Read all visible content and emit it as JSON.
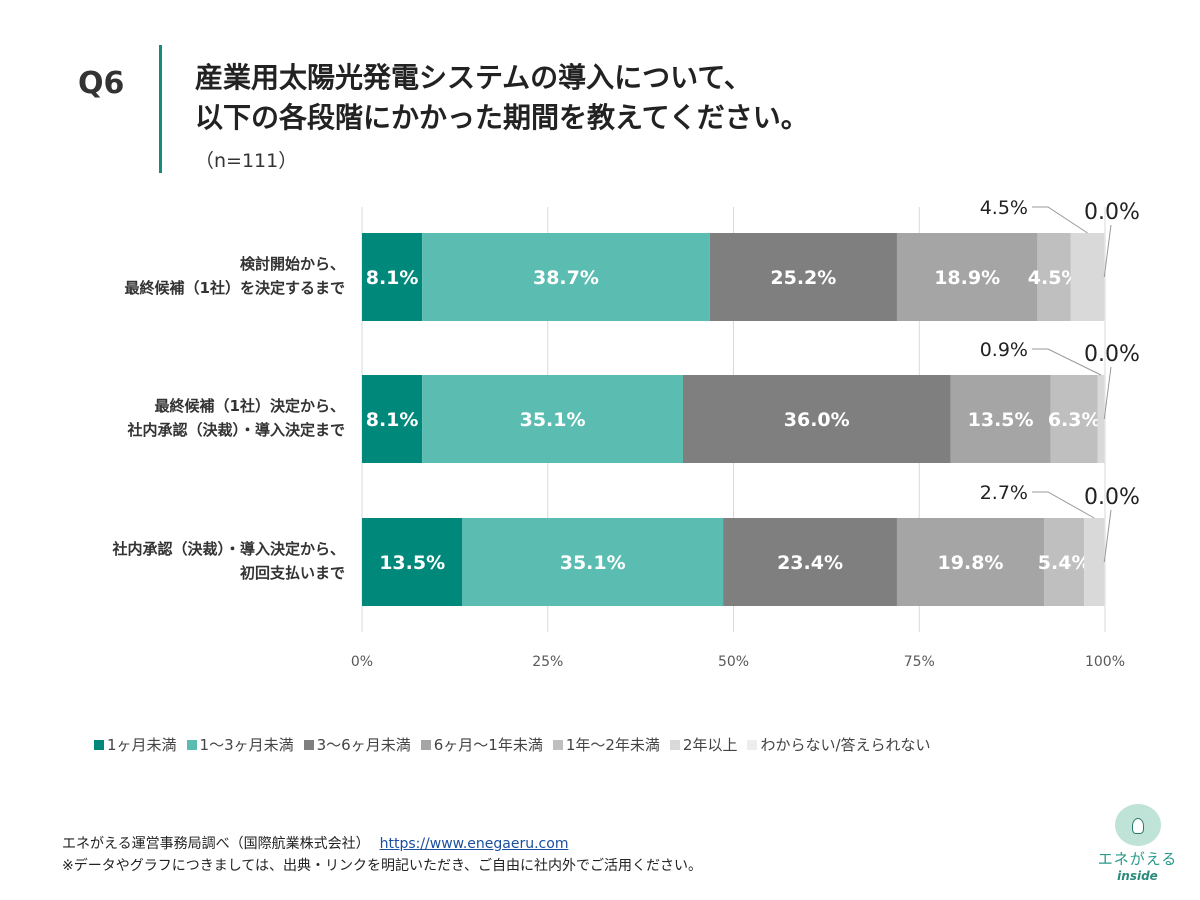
{
  "header": {
    "q": "Q6",
    "title_line1": "産業用太陽光発電システムの導入について、",
    "title_line2": "以下の各段階にかかった期間を教えてください。",
    "n": "（n=111）"
  },
  "chart_data": {
    "type": "bar",
    "orientation": "horizontal",
    "stacked": "100%",
    "categories": [
      [
        "検討開始から、",
        "最終候補（1社）を決定するまで"
      ],
      [
        "最終候補（1社）決定から、",
        "社内承認（決裁）・導入決定まで"
      ],
      [
        "社内承認（決裁）・導入決定から、",
        "初回支払いまで"
      ]
    ],
    "series": [
      {
        "name": "1ヶ月未満",
        "color": "#00897b",
        "values": [
          8.1,
          8.1,
          13.5
        ]
      },
      {
        "name": "1〜3ヶ月未満",
        "color": "#5bbcb1",
        "values": [
          38.7,
          35.1,
          35.1
        ]
      },
      {
        "name": "3〜6ヶ月未満",
        "color": "#7f7f7f",
        "values": [
          25.2,
          36.0,
          23.4
        ]
      },
      {
        "name": "6ヶ月〜1年未満",
        "color": "#a5a5a5",
        "values": [
          18.9,
          13.5,
          19.8
        ]
      },
      {
        "name": "1年〜2年未満",
        "color": "#bfbfbf",
        "values": [
          4.5,
          6.3,
          5.4
        ]
      },
      {
        "name": "2年以上",
        "color": "#d9d9d9",
        "values": [
          4.5,
          0.9,
          2.7
        ]
      },
      {
        "name": "わからない/答えられない",
        "color": "#ededed",
        "values": [
          0.0,
          0.0,
          0.0
        ]
      }
    ],
    "xlim": [
      0,
      100
    ],
    "xticks": [
      "0%",
      "25%",
      "50%",
      "75%",
      "100%"
    ],
    "grid": true,
    "legend": "bottom"
  },
  "footer": {
    "source": "エネがえる運営事務局調べ（国際航業株式会社）",
    "url": "https://www.enegaeru.com",
    "note": "※データやグラフにつきましては、出典・リンクを明記いただき、ご自由に社内外でご活用ください。"
  },
  "logo": {
    "text1": "エネがえる",
    "text2": "inside"
  }
}
